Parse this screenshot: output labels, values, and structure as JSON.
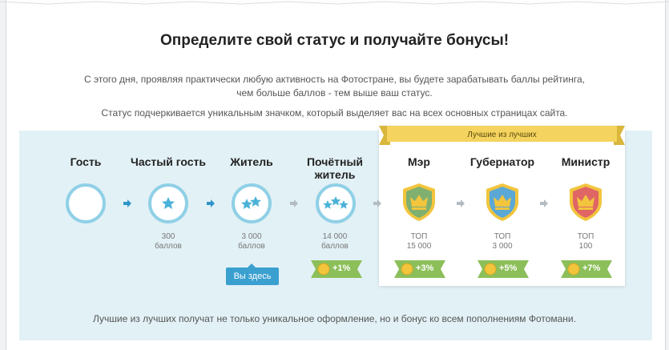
{
  "title": "Определите свой статус и получайте бонусы!",
  "description_line1": "С этого дня, проявляя практически любую активность на Фотостране, вы будете зарабатывать баллы рейтинга,",
  "description_line2": "чем больше баллов - тем выше ваш статус.",
  "description_2": "Статус подчеркивается уникальным значком, который выделяет вас на всех основных страницах сайта.",
  "best_label": "Лучшие из лучших",
  "you_are_here": "Вы здесь",
  "footer": "Лучшие из лучших получат не только уникальное оформление, но и бонус ко всем пополнениям Фотомани.",
  "colors": {
    "panel": "#e2f1f6",
    "ring": "#8fd0e6",
    "accent": "#3aa0d0",
    "bonus": "#8cbf5a",
    "coin": "#f2c53d",
    "ribbon": "#f4d35e"
  },
  "statuses": [
    {
      "name_line1": "Гость",
      "name_line2": "",
      "badge_icon": "empty-ring-badge",
      "points_line1": "",
      "points_line2": "",
      "bonus": ""
    },
    {
      "name_line1": "Частый гость",
      "name_line2": "",
      "badge_icon": "one-star-badge",
      "points_line1": "300",
      "points_line2": "баллов",
      "bonus": ""
    },
    {
      "name_line1": "Житель",
      "name_line2": "",
      "badge_icon": "two-star-badge",
      "points_line1": "3 000",
      "points_line2": "баллов",
      "bonus": ""
    },
    {
      "name_line1": "Почётный",
      "name_line2": "житель",
      "badge_icon": "three-star-badge",
      "points_line1": "14 000",
      "points_line2": "баллов",
      "bonus": "+1%"
    },
    {
      "name_line1": "Мэр",
      "name_line2": "",
      "badge_icon": "green-crown-shield",
      "points_line1": "ТОП",
      "points_line2": "15 000",
      "bonus": "+3%"
    },
    {
      "name_line1": "Губернатор",
      "name_line2": "",
      "badge_icon": "blue-crown-shield",
      "points_line1": "ТОП",
      "points_line2": "3 000",
      "bonus": "+5%"
    },
    {
      "name_line1": "Министр",
      "name_line2": "",
      "badge_icon": "red-crown-shield",
      "points_line1": "ТОП",
      "points_line2": "100",
      "bonus": "+7%"
    }
  ]
}
